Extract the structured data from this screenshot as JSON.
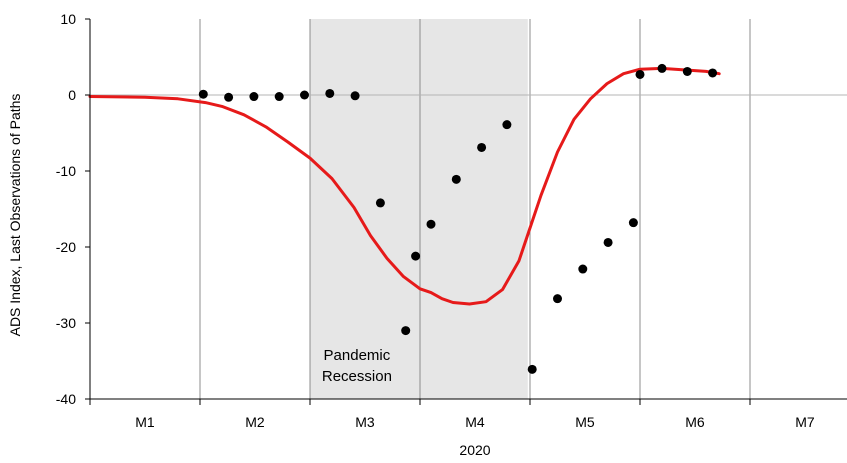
{
  "chart_data": {
    "type": "line",
    "xlabel": "2020",
    "ylabel": "ADS Index, Last Observations of Paths",
    "ylim": [
      -40,
      10
    ],
    "yticks": [
      10,
      0,
      -10,
      -20,
      -30,
      -40
    ],
    "xlim": [
      0,
      7
    ],
    "months": [
      "M1",
      "M2",
      "M3",
      "M4",
      "M5",
      "M6",
      "M7"
    ],
    "grid": {
      "vertical": true,
      "horizontal": false,
      "zero_line": true
    },
    "recession_band": {
      "start": 2.0,
      "end": 3.98,
      "label_lines": [
        "Pandemic",
        "Recession"
      ]
    },
    "colors": {
      "line": "#e61a1a",
      "points": "#000000",
      "band": "#e6e6e6",
      "grid": "#8c8c8c",
      "zero_line": "#b4b4b4"
    },
    "series": [
      {
        "kind": "line",
        "points": [
          [
            0.0,
            -0.2
          ],
          [
            0.5,
            -0.3
          ],
          [
            0.8,
            -0.5
          ],
          [
            1.05,
            -1.0
          ],
          [
            1.2,
            -1.5
          ],
          [
            1.4,
            -2.6
          ],
          [
            1.6,
            -4.2
          ],
          [
            1.8,
            -6.2
          ],
          [
            2.0,
            -8.3
          ],
          [
            2.2,
            -11.0
          ],
          [
            2.4,
            -14.8
          ],
          [
            2.55,
            -18.5
          ],
          [
            2.7,
            -21.5
          ],
          [
            2.85,
            -23.9
          ],
          [
            3.0,
            -25.5
          ],
          [
            3.1,
            -26.0
          ],
          [
            3.2,
            -26.8
          ],
          [
            3.3,
            -27.3
          ],
          [
            3.45,
            -27.5
          ],
          [
            3.6,
            -27.2
          ],
          [
            3.75,
            -25.6
          ],
          [
            3.9,
            -21.8
          ],
          [
            4.0,
            -17.5
          ],
          [
            4.1,
            -13.2
          ],
          [
            4.25,
            -7.5
          ],
          [
            4.4,
            -3.2
          ],
          [
            4.55,
            -0.5
          ],
          [
            4.7,
            1.5
          ],
          [
            4.85,
            2.8
          ],
          [
            5.0,
            3.4
          ],
          [
            5.2,
            3.5
          ],
          [
            5.4,
            3.3
          ],
          [
            5.6,
            3.1
          ],
          [
            5.72,
            2.8
          ]
        ]
      },
      {
        "kind": "scatter",
        "points": [
          [
            1.03,
            0.1
          ],
          [
            1.26,
            -0.3
          ],
          [
            1.49,
            -0.2
          ],
          [
            1.72,
            -0.2
          ],
          [
            1.95,
            0.0
          ],
          [
            2.18,
            0.2
          ],
          [
            2.41,
            -0.1
          ],
          [
            2.64,
            -14.2
          ],
          [
            2.87,
            -31.0
          ],
          [
            2.96,
            -21.2
          ],
          [
            3.1,
            -17.0
          ],
          [
            3.33,
            -11.1
          ],
          [
            3.56,
            -6.9
          ],
          [
            3.79,
            -3.9
          ],
          [
            4.02,
            -36.1
          ],
          [
            4.25,
            -26.8
          ],
          [
            4.48,
            -22.9
          ],
          [
            4.71,
            -19.4
          ],
          [
            4.94,
            -16.8
          ],
          [
            5.0,
            2.7
          ],
          [
            5.2,
            3.5
          ],
          [
            5.43,
            3.1
          ],
          [
            5.66,
            2.9
          ]
        ]
      }
    ]
  }
}
